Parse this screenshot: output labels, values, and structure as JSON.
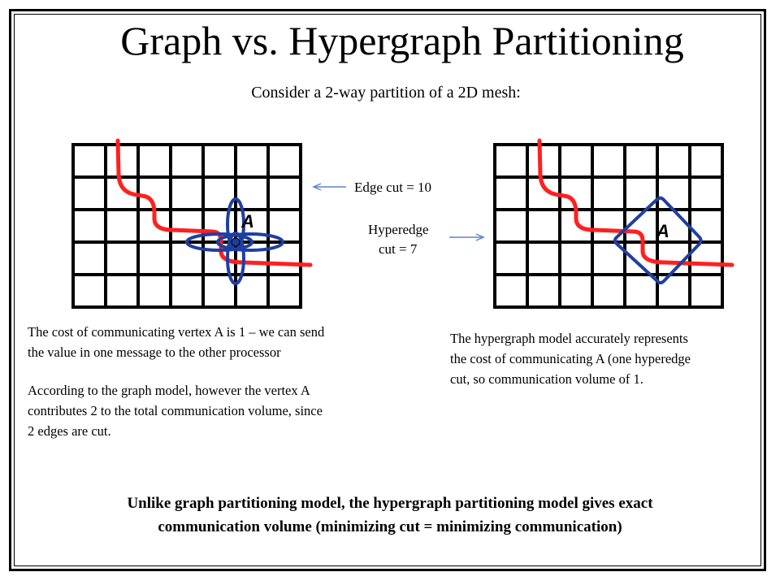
{
  "title": "Graph vs. Hypergraph Partitioning",
  "subtitle": "Consider a 2-way partition of a 2D mesh:",
  "edge_cut_label": "Edge cut = 10",
  "hyperedge_label_line1": "Hyperedge",
  "hyperedge_label_line2": "cut = 7",
  "vertex_label": "A",
  "left_text": {
    "para1_line1": "The cost of communicating vertex A is 1 – we can send",
    "para1_line2": "the value in one message  to the other processor",
    "para2_line1": "According to the graph model,  however  the vertex A",
    "para2_line2": "contributes 2 to the total communication volume, since",
    "para2_line3": "2 edges are cut."
  },
  "right_text": {
    "line1": "The hypergraph model accurately  represents",
    "line2": "the cost of communicating  A (one hyperedge",
    "line3": "cut, so communication  volume of 1."
  },
  "conclusion_line1": "Unlike graph partitioning model, the hypergraph partitioning model gives exact",
  "conclusion_line2": "communication volume (minimizing cut = minimizing communication)",
  "colors": {
    "cut_line": "#ff2020",
    "edge": "#1f3fa0",
    "arrow": "#5b86c4",
    "grid": "#000000"
  }
}
